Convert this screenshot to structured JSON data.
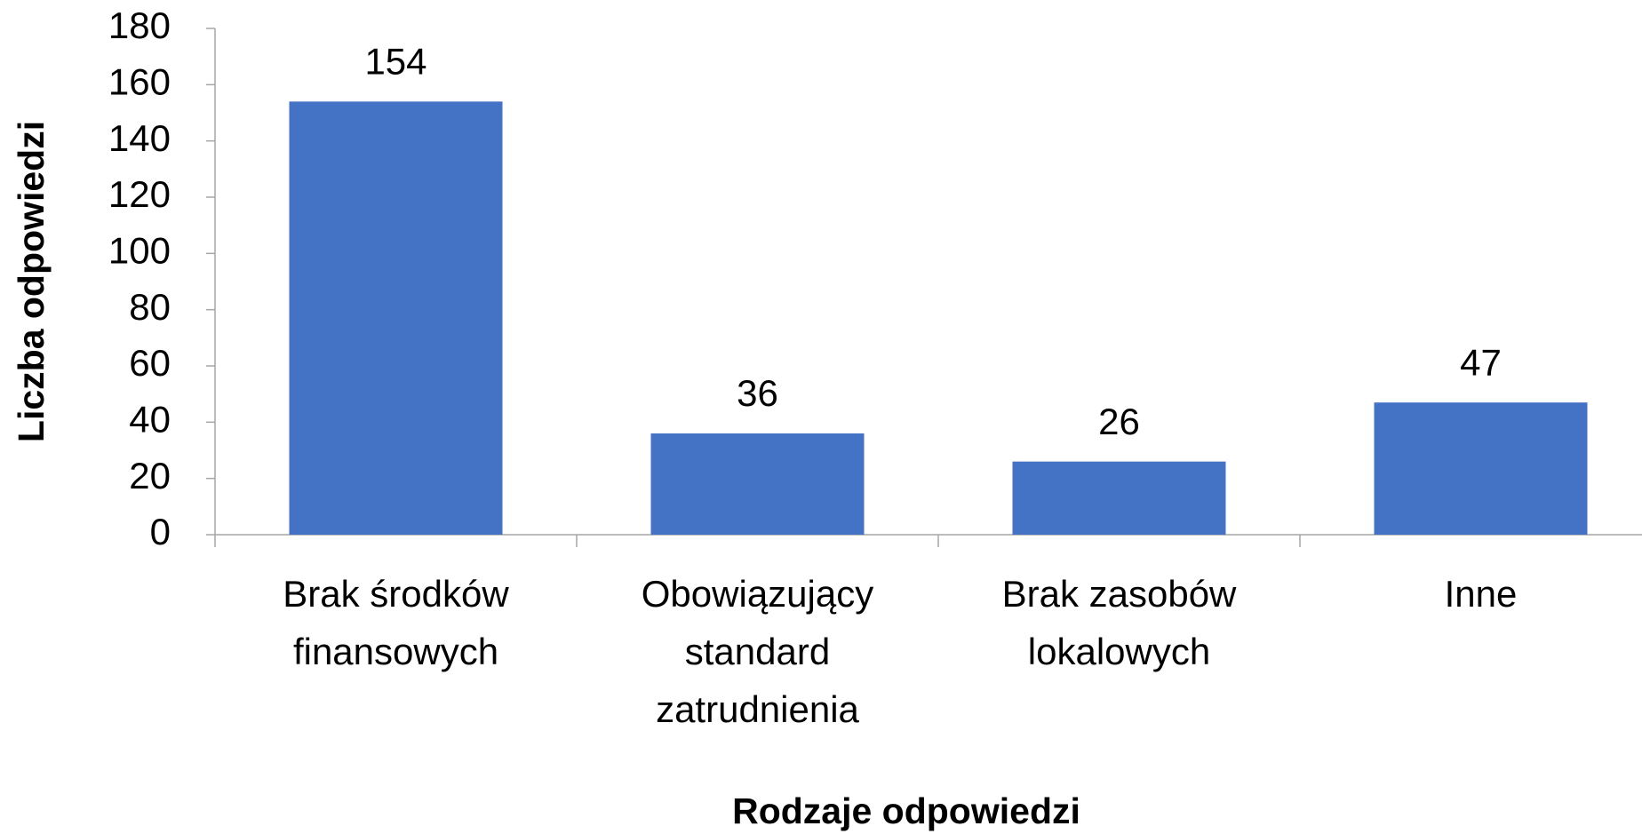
{
  "chart_data": {
    "type": "bar",
    "categories": [
      "Brak środków finansowych",
      "Obowiązujący standard zatrudnienia",
      "Brak zasobów lokalowych",
      "Inne"
    ],
    "values": [
      154,
      36,
      26,
      47
    ],
    "color": "#4472c4",
    "ylim": [
      0,
      180
    ],
    "yticks": [
      0,
      20,
      40,
      60,
      80,
      100,
      120,
      140,
      160,
      180
    ],
    "xlabel": "Rodzaje odpowiedzi",
    "ylabel": "Liczba odpowiedzi",
    "grid": false
  }
}
